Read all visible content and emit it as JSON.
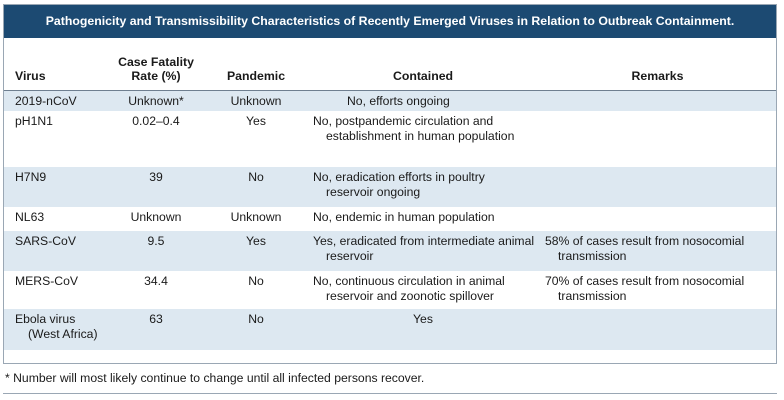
{
  "title": "Pathogenicity and Transmissibility Characteristics of Recently Emerged Viruses in Relation to Outbreak Containment.",
  "columns": {
    "virus": "Virus",
    "cfr": "Case Fatality Rate (%)",
    "pandemic": "Pandemic",
    "contained": "Contained",
    "remarks": "Remarks"
  },
  "rows": [
    {
      "virus": "2019-nCoV",
      "virus_sub": "",
      "cfr": "Unknown*",
      "pandemic": "Unknown",
      "contained": "No, efforts ongoing",
      "remarks": ""
    },
    {
      "virus": "pH1N1",
      "virus_sub": "",
      "cfr": "0.02–0.4",
      "pandemic": "Yes",
      "contained": "No, postpandemic circulation and establishment in human population",
      "remarks": ""
    },
    {
      "virus": "H7N9",
      "virus_sub": "",
      "cfr": "39",
      "pandemic": "No",
      "contained": "No, eradication efforts in poultry reservoir ongoing",
      "remarks": ""
    },
    {
      "virus": "NL63",
      "virus_sub": "",
      "cfr": "Unknown",
      "pandemic": "Unknown",
      "contained": "No, endemic in human population",
      "remarks": ""
    },
    {
      "virus": "SARS-CoV",
      "virus_sub": "",
      "cfr": "9.5",
      "pandemic": "Yes",
      "contained": "Yes, eradicated from intermediate animal reservoir",
      "remarks": "58% of cases result from nosocomial transmission"
    },
    {
      "virus": "MERS-CoV",
      "virus_sub": "",
      "cfr": "34.4",
      "pandemic": "No",
      "contained": "No, continuous circulation in animal reservoir and zoonotic spillover",
      "remarks": "70% of cases result from nosocomial transmission"
    },
    {
      "virus": "Ebola virus",
      "virus_sub": "(West Africa)",
      "cfr": "63",
      "pandemic": "No",
      "contained": "Yes",
      "remarks": ""
    }
  ],
  "footnote": "* Number will most likely continue to change until all infected persons recover.",
  "colors": {
    "title_bg": "#1c4a72",
    "stripe": "#dde8f1",
    "border": "#9aa7b4"
  }
}
